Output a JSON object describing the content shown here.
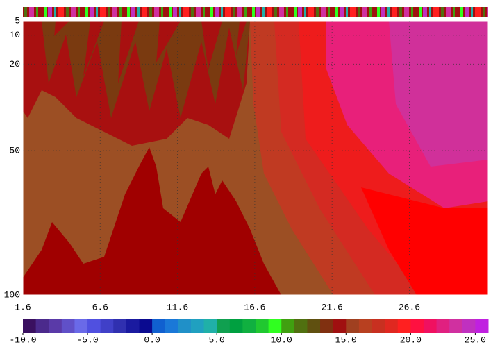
{
  "chart_data": {
    "type": "contour",
    "xlim": [
      1.6,
      31.7
    ],
    "xticks": [
      1.6,
      6.6,
      11.6,
      16.6,
      21.6,
      26.6
    ],
    "ylim": [
      5,
      100
    ],
    "yticks": [
      5,
      10,
      20,
      50,
      100
    ],
    "y_inverted": true,
    "grid": true,
    "clim": [
      -10,
      26
    ],
    "cticks": [
      {
        "value": -10,
        "label": "-10.0"
      },
      {
        "value": -5,
        "label": "-5.0"
      },
      {
        "value": 0,
        "label": "0.0"
      },
      {
        "value": 5,
        "label": "5.0"
      },
      {
        "value": 10,
        "label": "10.0"
      },
      {
        "value": 15,
        "label": "15.0"
      },
      {
        "value": 20,
        "label": "20.0"
      },
      {
        "value": 25,
        "label": "25.0"
      }
    ],
    "colors": [
      "#3a1060",
      "#4b2a8c",
      "#5a3aa8",
      "#6050c8",
      "#6a6ae8",
      "#5050e0",
      "#4040c8",
      "#3030b0",
      "#1a1aa0",
      "#0a0a90",
      "#1060d0",
      "#1a78d8",
      "#2090c8",
      "#20a0c0",
      "#20b0a8",
      "#10a050",
      "#00a040",
      "#10b040",
      "#20c830",
      "#30ff20",
      "#40a010",
      "#507010",
      "#605010",
      "#803010",
      "#a01010",
      "#a04020",
      "#b84020",
      "#c83020",
      "#e02820",
      "#ff2020",
      "#ff1040",
      "#f01060",
      "#e02080",
      "#d030a0",
      "#c030c0",
      "#c020e0"
    ]
  }
}
